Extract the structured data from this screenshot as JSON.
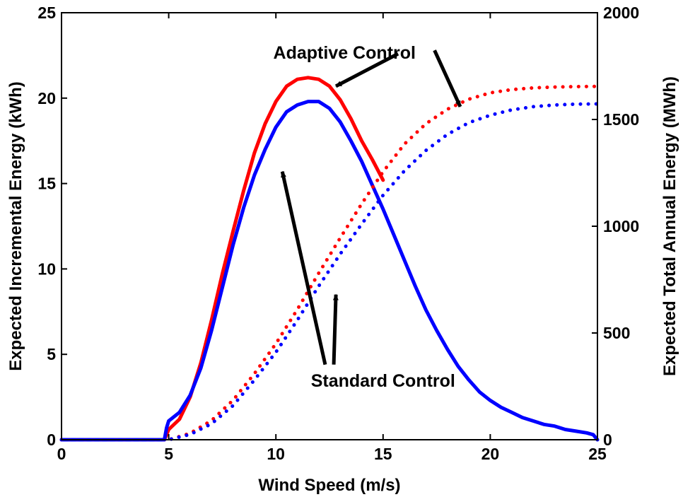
{
  "chart_data": {
    "type": "line",
    "title": "",
    "xlabel": "Wind Speed (m/s)",
    "ylabel": "Expected Incremental Energy (kWh)",
    "y2label": "Expected Total Annual Energy (MWh)",
    "xlim": [
      0,
      25
    ],
    "ylim": [
      0,
      25
    ],
    "y2lim": [
      0,
      2000
    ],
    "xticks": [
      "0",
      "5",
      "10",
      "15",
      "20",
      "25"
    ],
    "yticks": [
      "0",
      "5",
      "10",
      "15",
      "20",
      "25"
    ],
    "y2ticks": [
      "0",
      "500",
      "1000",
      "1500",
      "2000"
    ],
    "grid": false,
    "colors": {
      "adaptive": "#ff0000",
      "standard": "#0000ff"
    },
    "series": [
      {
        "line": "solid",
        "axis": "left",
        "color": "#ff0000",
        "x": [
          0,
          4.8,
          4.9,
          5.0,
          5.5,
          6.0,
          6.5,
          7.0,
          7.5,
          8.0,
          8.5,
          9.0,
          9.5,
          10.0,
          10.5,
          11.0,
          11.5,
          12.0,
          12.5,
          13.0,
          13.5,
          14.0,
          14.5,
          15.0
        ],
        "y": [
          0,
          0,
          0.3,
          0.6,
          1.2,
          2.5,
          4.5,
          7.0,
          9.7,
          12.2,
          14.6,
          16.8,
          18.5,
          19.8,
          20.7,
          21.1,
          21.2,
          21.1,
          20.7,
          19.9,
          18.8,
          17.5,
          16.4,
          15.2
        ]
      },
      {
        "line": "solid",
        "axis": "left",
        "color": "#0000ff",
        "x": [
          0,
          4.8,
          4.9,
          5.0,
          5.5,
          6.0,
          6.5,
          7.0,
          7.5,
          8.0,
          8.5,
          9.0,
          9.5,
          10.0,
          10.5,
          11.0,
          11.5,
          12.0,
          12.5,
          13.0,
          13.5,
          14.0,
          14.5,
          15.0,
          15.5,
          16.0,
          16.5,
          17.0,
          17.5,
          18.0,
          18.5,
          19.0,
          19.5,
          20.0,
          20.5,
          21.0,
          21.5,
          22.0,
          22.5,
          23.0,
          23.5,
          24.0,
          24.5,
          24.8,
          25.0
        ],
        "y": [
          0,
          0,
          0.7,
          1.1,
          1.6,
          2.6,
          4.2,
          6.4,
          8.9,
          11.4,
          13.6,
          15.5,
          17.0,
          18.3,
          19.2,
          19.6,
          19.8,
          19.8,
          19.4,
          18.6,
          17.5,
          16.3,
          14.9,
          13.5,
          12.0,
          10.5,
          9.0,
          7.6,
          6.4,
          5.3,
          4.3,
          3.5,
          2.8,
          2.3,
          1.9,
          1.6,
          1.3,
          1.1,
          0.9,
          0.8,
          0.6,
          0.5,
          0.4,
          0.3,
          0
        ]
      },
      {
        "line": "dotted",
        "axis": "right",
        "color": "#ff0000",
        "x": [
          0,
          5.0,
          6.0,
          7.0,
          8.0,
          9.0,
          10.0,
          11.0,
          12.0,
          13.0,
          14.0,
          15.0,
          16.0,
          17.0,
          18.0,
          19.0,
          20.0,
          21.0,
          22.0,
          23.0,
          24.0,
          25.0
        ],
        "y": [
          0,
          0,
          30,
          90,
          185,
          310,
          450,
          610,
          780,
          945,
          1105,
          1255,
          1385,
          1480,
          1548,
          1595,
          1625,
          1640,
          1648,
          1652,
          1654,
          1655
        ]
      },
      {
        "line": "dotted",
        "axis": "right",
        "color": "#0000ff",
        "x": [
          0,
          5.0,
          6.0,
          7.0,
          8.0,
          9.0,
          10.0,
          11.0,
          12.0,
          13.0,
          14.0,
          15.0,
          16.0,
          17.0,
          18.0,
          19.0,
          20.0,
          21.0,
          22.0,
          23.0,
          24.0,
          25.0
        ],
        "y": [
          0,
          0,
          25,
          75,
          160,
          280,
          410,
          560,
          720,
          870,
          1010,
          1145,
          1260,
          1355,
          1430,
          1485,
          1520,
          1545,
          1560,
          1568,
          1572,
          1573
        ]
      }
    ],
    "annotations": [
      {
        "text": "Adaptive Control",
        "x": 13.2,
        "y": 22.3,
        "arrows": [
          {
            "from": [
              15.7,
              22.6
            ],
            "to": [
              12.8,
              20.7
            ]
          },
          {
            "from": [
              17.4,
              22.8
            ],
            "to": [
              18.6,
              19.5
            ]
          }
        ]
      },
      {
        "text": "Standard Control",
        "x": 15.0,
        "y": 3.1,
        "arrows": [
          {
            "from": [
              12.3,
              4.4
            ],
            "to": [
              10.3,
              15.7
            ]
          },
          {
            "from": [
              12.7,
              4.4
            ],
            "to": [
              12.8,
              8.5
            ]
          }
        ]
      }
    ]
  }
}
